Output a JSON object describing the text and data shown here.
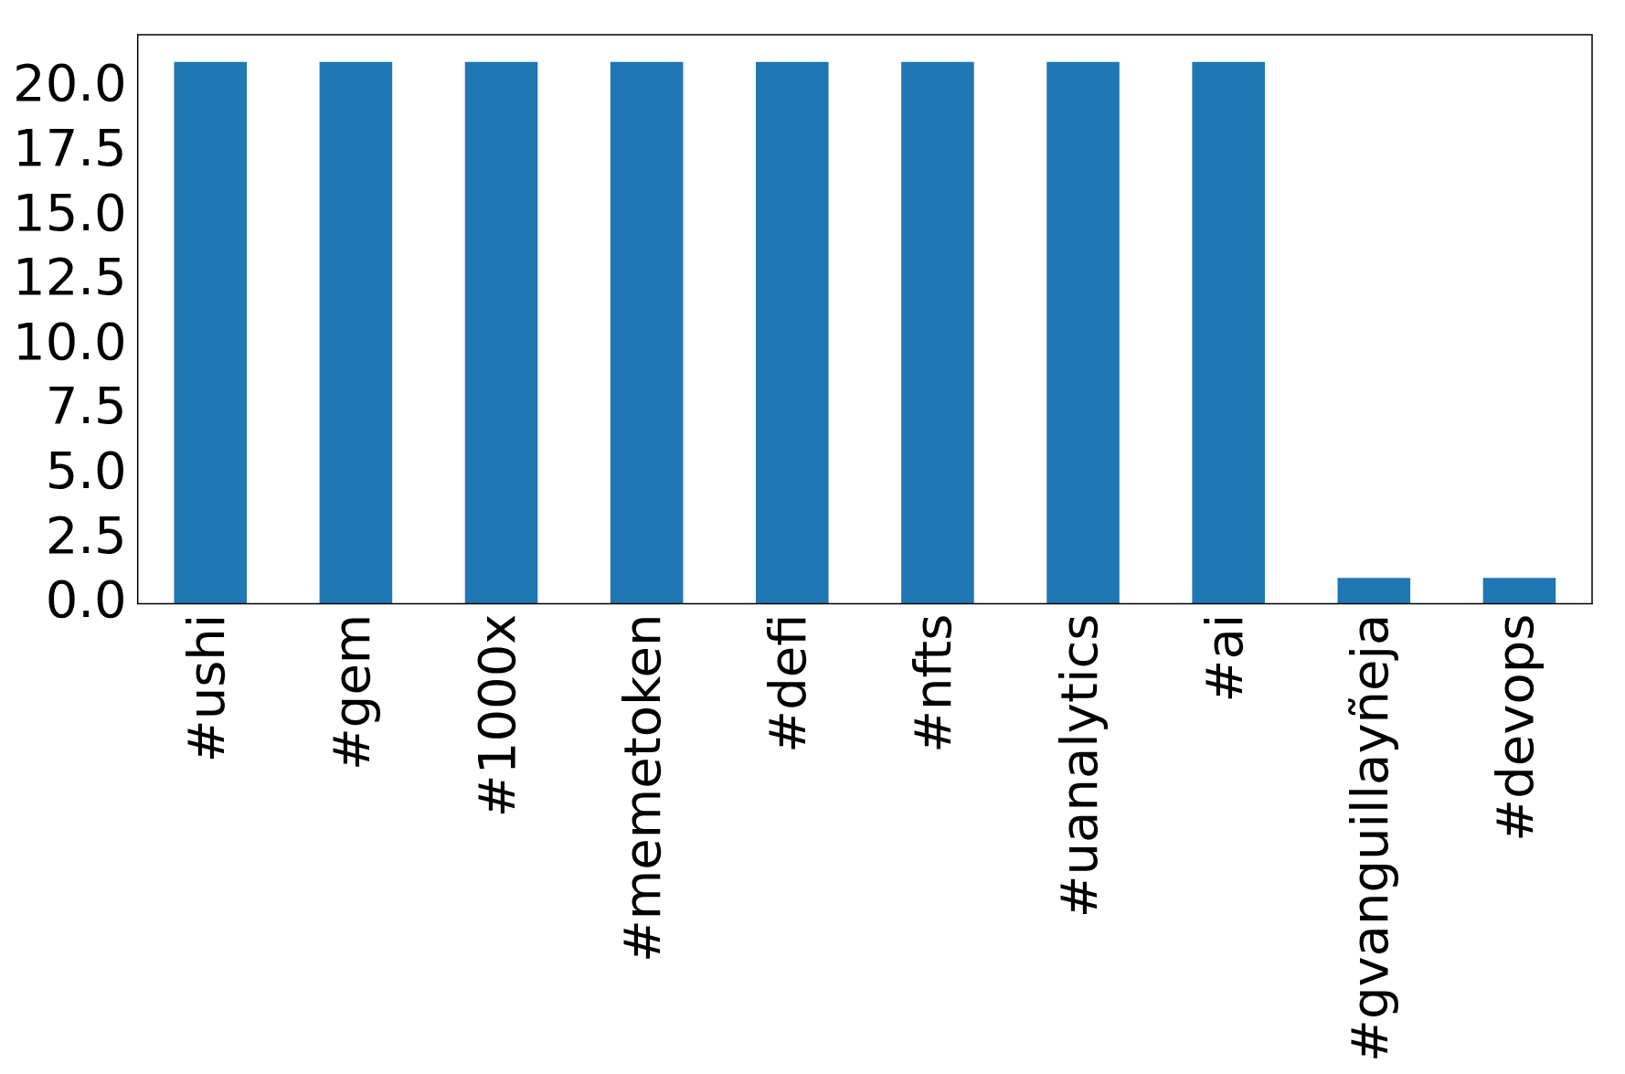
{
  "chart_data": {
    "type": "bar",
    "categories": [
      "#ushi",
      "#gem",
      "#1000x",
      "#memetoken",
      "#defi",
      "#nfts",
      "#uanalytics",
      "#ai",
      "#gvanguillayñeja",
      "#devops"
    ],
    "values": [
      21,
      21,
      21,
      21,
      21,
      21,
      21,
      21,
      1,
      1
    ],
    "color": "#1f77b4",
    "ylim": [
      0,
      22.05
    ],
    "yticks": [
      {
        "value": 0,
        "label": "0.0"
      },
      {
        "value": 2.5,
        "label": "2.5"
      },
      {
        "value": 5,
        "label": "5.0"
      },
      {
        "value": 7.5,
        "label": "7.5"
      },
      {
        "value": 10,
        "label": "10.0"
      },
      {
        "value": 12.5,
        "label": "12.5"
      },
      {
        "value": 15,
        "label": "15.0"
      },
      {
        "value": 17.5,
        "label": "17.5"
      },
      {
        "value": 20,
        "label": "20.0"
      }
    ],
    "grid": false,
    "legend": false
  }
}
